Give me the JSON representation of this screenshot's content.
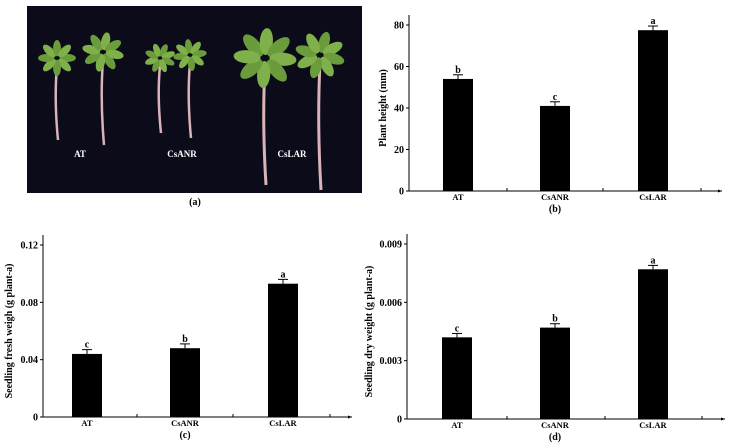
{
  "photo": {
    "caption": "(a)",
    "labels": [
      "AT",
      "CsANR",
      "CsLAR"
    ],
    "background_color": "#0b0b1a",
    "leaf_color": "#7fb04a",
    "root_color": "#d9b3b8"
  },
  "chart_data": [
    {
      "type": "bar",
      "caption": "(b)",
      "categories": [
        "AT",
        "CsANR",
        "CsLAR"
      ],
      "values": [
        54,
        41,
        77.5
      ],
      "errors": [
        2,
        2,
        2
      ],
      "significance": [
        "b",
        "c",
        "a"
      ],
      "ylabel": "Plant height (mm)",
      "ylim": [
        0,
        80
      ],
      "yticks": [
        "0",
        "20",
        "40",
        "60",
        "80"
      ],
      "ytick_values": [
        0,
        20,
        40,
        60,
        80
      ],
      "bar_color": "#000000",
      "grid": false
    },
    {
      "type": "bar",
      "caption": "(c)",
      "categories": [
        "AT",
        "CsANR",
        "CsLAR"
      ],
      "values": [
        0.044,
        0.048,
        0.093
      ],
      "errors": [
        0.003,
        0.003,
        0.003
      ],
      "significance": [
        "c",
        "b",
        "a"
      ],
      "ylabel": "Seedling fresh weigh (g plant-a)",
      "ylim": [
        0,
        0.12
      ],
      "yticks": [
        "0",
        "0.04",
        "0.08",
        "0.12"
      ],
      "ytick_values": [
        0,
        0.04,
        0.08,
        0.12
      ],
      "bar_color": "#000000",
      "grid": false
    },
    {
      "type": "bar",
      "caption": "(d)",
      "categories": [
        "AT",
        "CsANR",
        "CsLAR"
      ],
      "values": [
        0.0042,
        0.0047,
        0.0077
      ],
      "errors": [
        0.0002,
        0.0002,
        0.0002
      ],
      "significance": [
        "c",
        "b",
        "a"
      ],
      "ylabel": "Seedling dry weight (g plant-a)",
      "ylim": [
        0,
        0.009
      ],
      "yticks": [
        "0",
        "0.003",
        "0.006",
        "0.009"
      ],
      "ytick_values": [
        0,
        0.003,
        0.006,
        0.009
      ],
      "bar_color": "#000000",
      "grid": false
    }
  ]
}
